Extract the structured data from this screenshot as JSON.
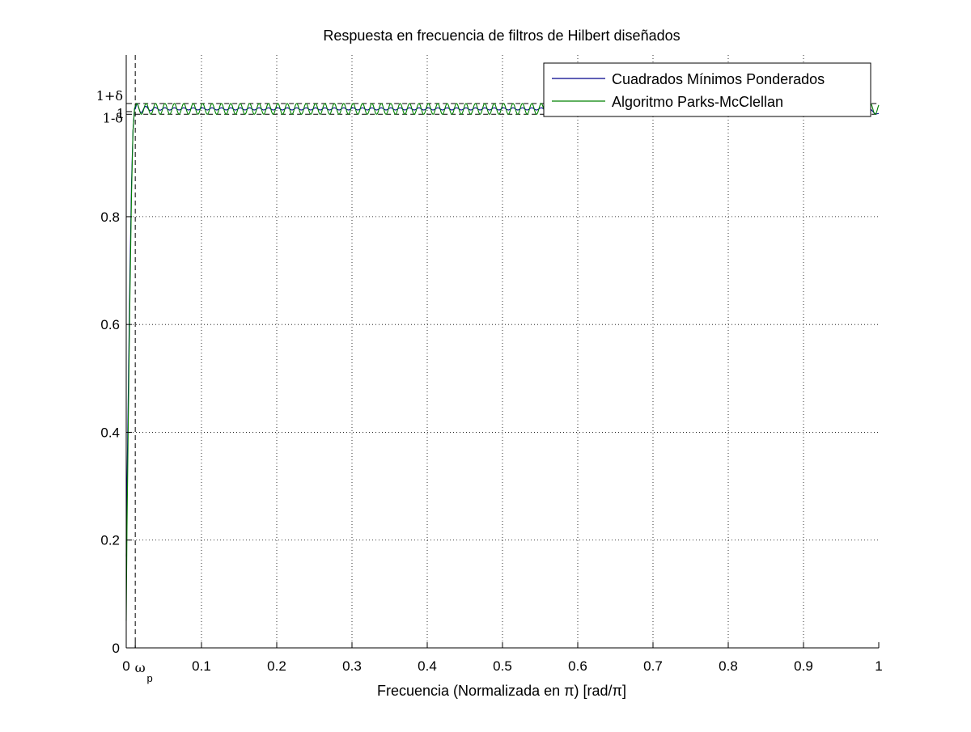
{
  "chart_data": {
    "type": "line",
    "title": "Respuesta en frecuencia de filtros de Hilbert diseñados",
    "xlabel": "Frecuencia (Normalizada en π) [rad/π]",
    "ylabel": "",
    "xlim": [
      0,
      1
    ],
    "ylim": [
      0,
      1.1
    ],
    "grid": true,
    "legend_position": "top-right",
    "xticks": [
      0,
      0.1,
      0.2,
      0.3,
      0.4,
      0.5,
      0.6,
      0.7,
      0.8,
      0.9,
      1
    ],
    "xtick_labels": [
      "0",
      "0.1",
      "0.2",
      "0.3",
      "0.4",
      "0.5",
      "0.6",
      "0.7",
      "0.8",
      "0.9",
      "1"
    ],
    "yticks": [
      0,
      0.2,
      0.4,
      0.6,
      0.8
    ],
    "ytick_labels": [
      "0",
      "0.2",
      "0.4",
      "0.6",
      "0.8"
    ],
    "special_y_labels": [
      {
        "value": 1.01,
        "label": "1+δ"
      },
      {
        "value": 0.99,
        "label": "1-δ"
      },
      {
        "value": 0.995,
        "label": "1"
      }
    ],
    "special_x_label": {
      "value": 0.012,
      "label": "ω",
      "subscript": "p"
    },
    "reference_lines": {
      "passband_edge_x": 0.012,
      "delta_upper": 1.01,
      "delta_lower": 0.99
    },
    "series": [
      {
        "name": "Cuadrados Mínimos Ponderados",
        "color": "#00008b",
        "x": [
          0,
          0.001,
          0.003,
          0.005,
          0.007,
          0.009,
          0.011,
          0.012,
          0.014,
          0.016,
          0.02,
          0.05,
          0.1,
          0.5,
          0.9,
          0.95,
          0.98,
          1.0
        ],
        "y": [
          0.17,
          0.3,
          0.5,
          0.7,
          0.86,
          0.96,
          1.0,
          1.0,
          1.01,
          1.006,
          1.0,
          1.0,
          1.0,
          1.0,
          1.0,
          1.0,
          1.0,
          0.99
        ],
        "ripple_amplitude": 0.002
      },
      {
        "name": "Algoritmo Parks-McClellan",
        "color": "#008000",
        "x": [
          0,
          0.001,
          0.003,
          0.005,
          0.007,
          0.009,
          0.011,
          0.012,
          0.014,
          1.0
        ],
        "y": [
          0.05,
          0.22,
          0.45,
          0.66,
          0.84,
          0.96,
          1.0,
          1.005,
          1.01,
          1.0
        ],
        "ripple_amplitude": 0.01,
        "ripple_period": 0.0125
      }
    ]
  }
}
